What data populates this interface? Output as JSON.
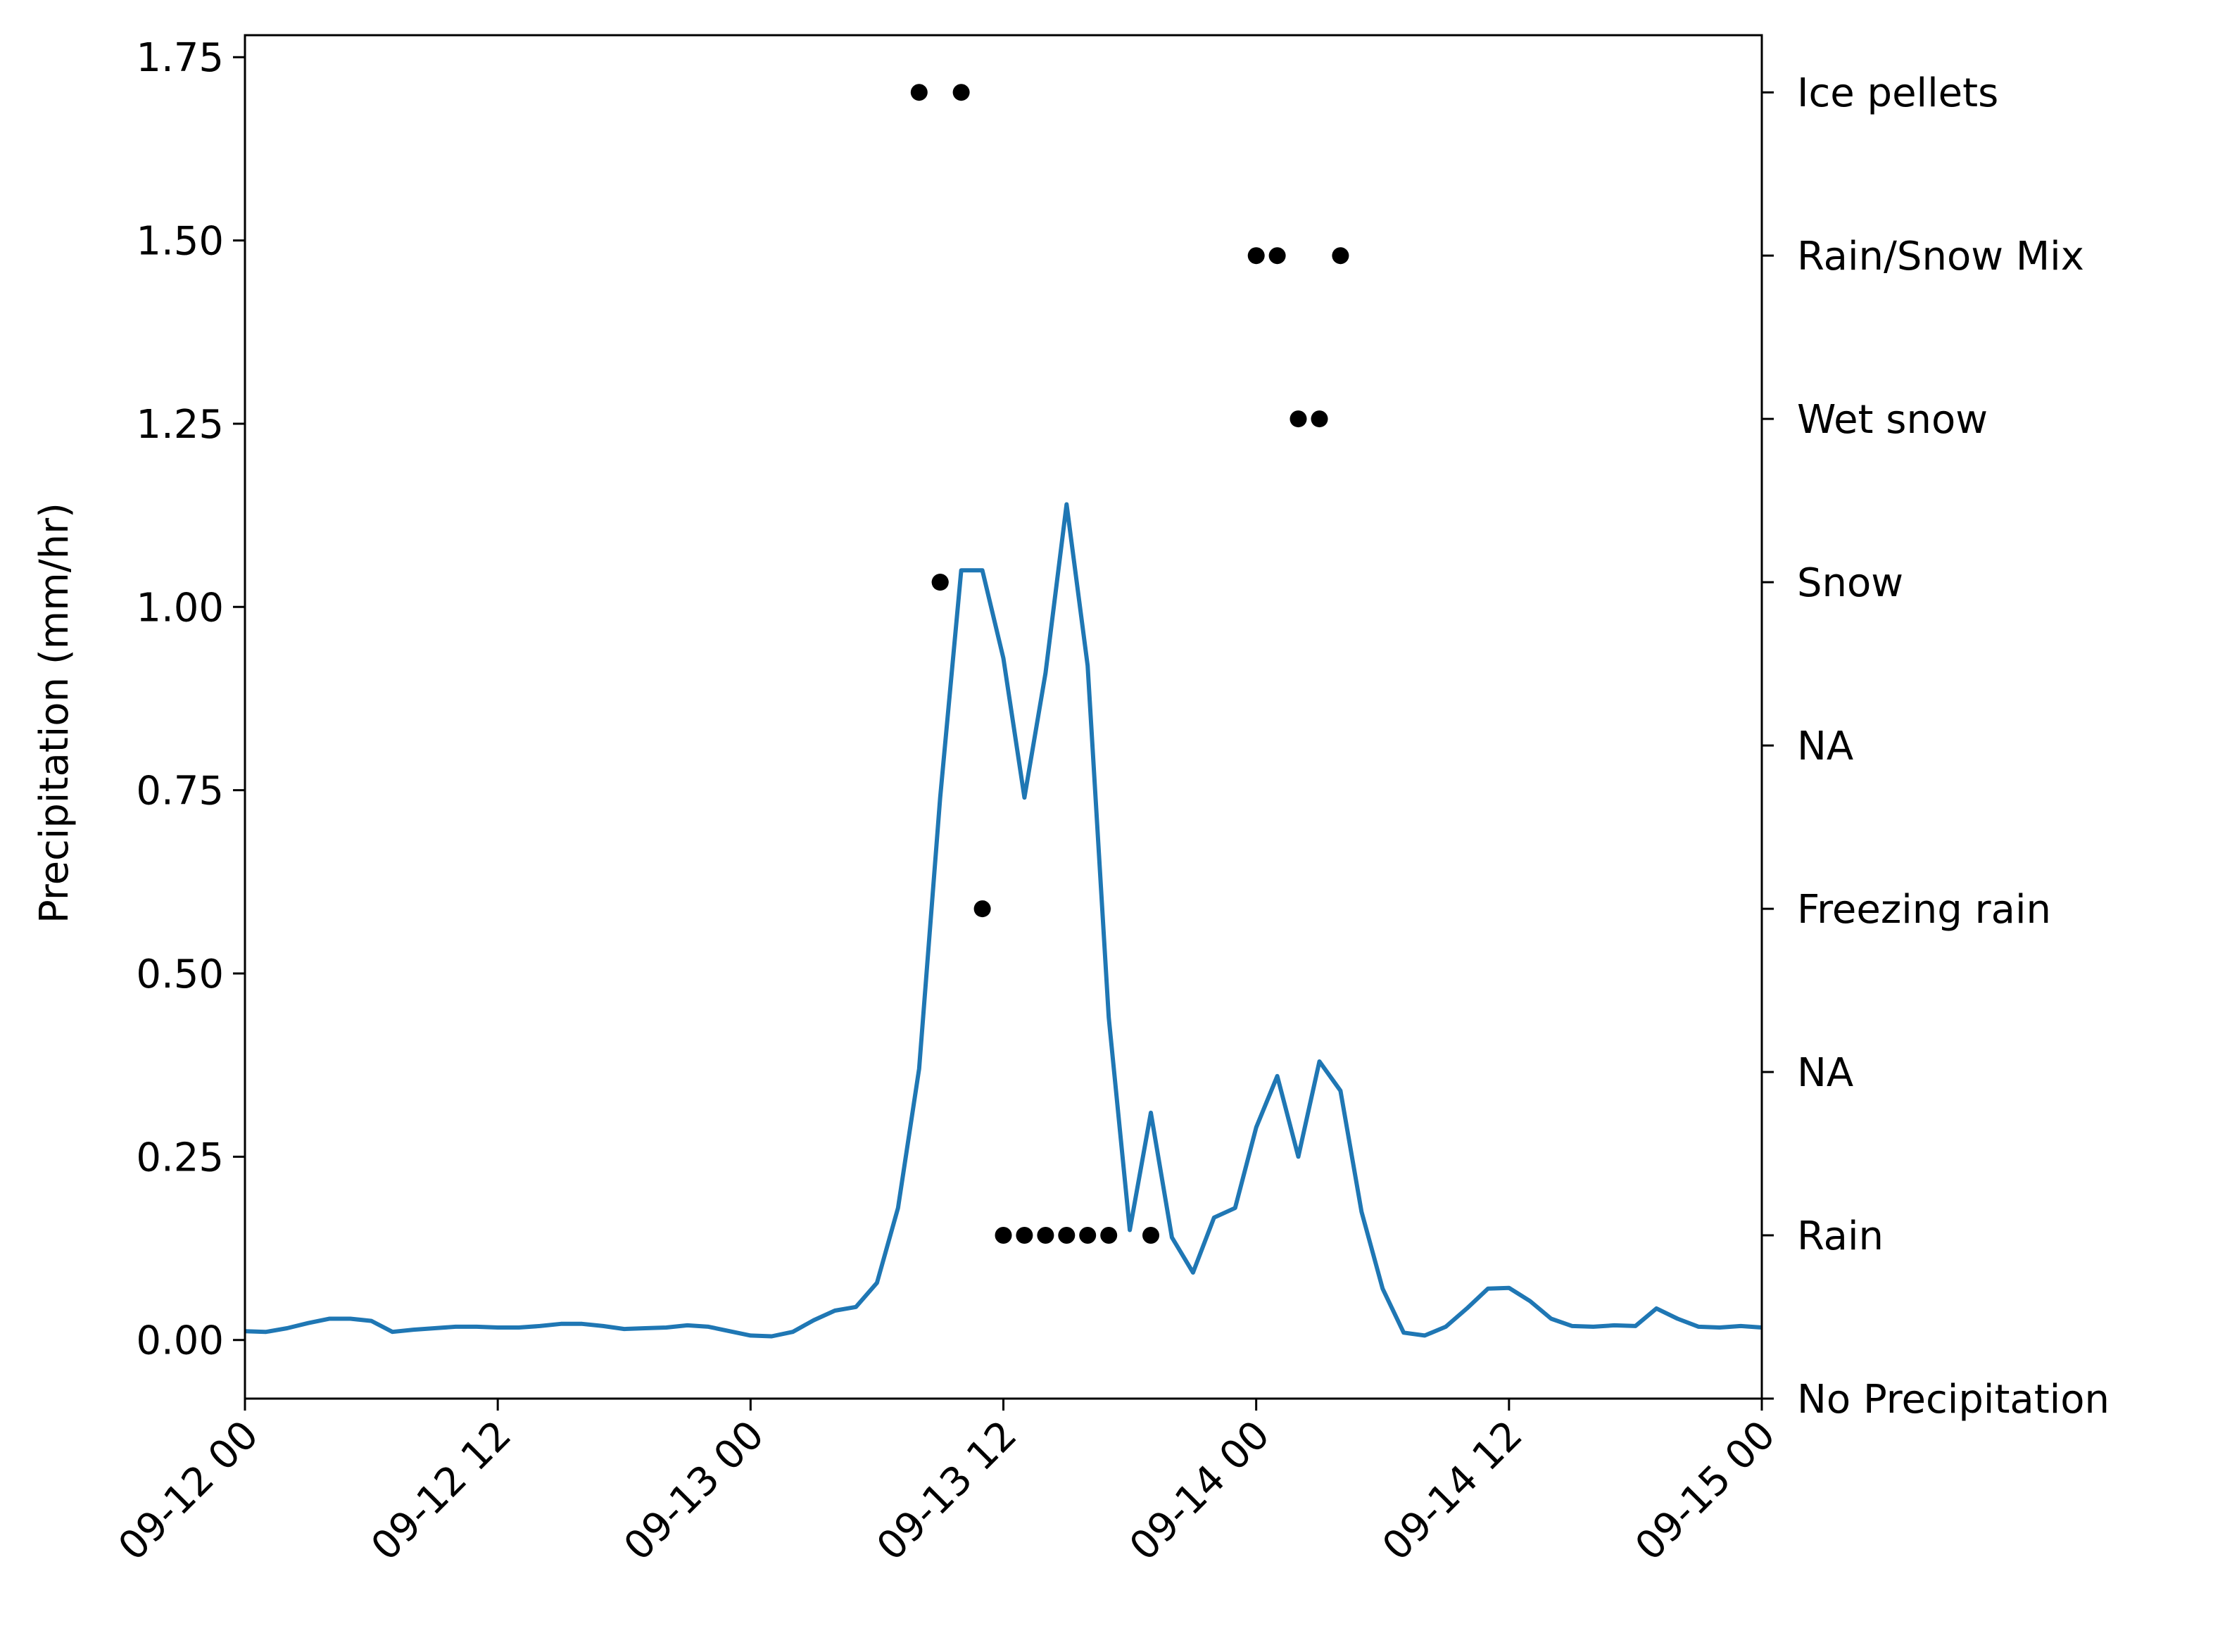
{
  "chart_data": {
    "type": "line",
    "title": "",
    "xlabel": "",
    "ylabel": "Precipitation (mm/hr)",
    "ylabel_right": "",
    "grid": false,
    "legend": "none",
    "xlim": [
      "2023-09-12 00:00",
      "2023-09-15 00:00"
    ],
    "ylim": [
      -0.08,
      1.78
    ],
    "x_tick_labels": [
      "09-12 00",
      "09-12 12",
      "09-13 00",
      "09-13 12",
      "09-14 00",
      "09-14 12",
      "09-15 00"
    ],
    "y_ticks": [
      0.0,
      0.25,
      0.5,
      0.75,
      1.0,
      1.25,
      1.5,
      1.75
    ],
    "y_tick_labels": [
      "0.00",
      "0.25",
      "0.50",
      "0.75",
      "1.00",
      "1.25",
      "1.50",
      "1.75"
    ],
    "right_axis": {
      "ylim": [
        0,
        8.35
      ],
      "ticks": [
        0,
        1,
        2,
        3,
        4,
        5,
        6,
        7,
        8
      ],
      "tick_labels": [
        "No Precipitation",
        "Rain",
        "NA",
        "Freezing rain",
        "NA",
        "Snow",
        "Wet snow",
        "Rain/Snow Mix",
        "Ice pellets"
      ]
    },
    "series": [
      {
        "type": "line",
        "color": "#1f77b4",
        "x_hours": [
          0,
          1,
          2,
          3,
          4,
          5,
          6,
          7,
          8,
          9,
          10,
          11,
          12,
          13,
          14,
          15,
          16,
          17,
          18,
          19,
          20,
          21,
          22,
          23,
          24,
          25,
          26,
          27,
          28,
          29,
          30,
          31,
          32,
          33,
          34,
          35,
          36,
          37,
          38,
          39,
          40,
          41,
          42,
          43,
          44,
          45,
          46,
          47,
          48,
          49,
          50,
          51,
          52,
          53,
          54,
          55,
          56,
          57,
          58,
          59,
          60,
          61,
          62,
          63,
          64,
          65,
          66,
          67,
          68,
          69,
          70,
          71,
          72
        ],
        "values": [
          0.012,
          0.011,
          0.016,
          0.023,
          0.029,
          0.029,
          0.026,
          0.011,
          0.014,
          0.016,
          0.018,
          0.018,
          0.017,
          0.017,
          0.019,
          0.022,
          0.022,
          0.019,
          0.015,
          0.016,
          0.017,
          0.02,
          0.018,
          0.012,
          0.006,
          0.005,
          0.011,
          0.027,
          0.04,
          0.045,
          0.078,
          0.18,
          0.37,
          0.74,
          1.05,
          1.05,
          0.93,
          0.74,
          0.91,
          1.14,
          0.92,
          0.44,
          0.15,
          0.31,
          0.14,
          0.092,
          0.167,
          0.18,
          0.29,
          0.36,
          0.25,
          0.38,
          0.34,
          0.175,
          0.07,
          0.01,
          0.006,
          0.018,
          0.043,
          0.07,
          0.071,
          0.053,
          0.029,
          0.019,
          0.018,
          0.02,
          0.019,
          0.043,
          0.029,
          0.018,
          0.017,
          0.019,
          0.017
        ]
      },
      {
        "type": "scatter",
        "axis": "right",
        "color": "#000000",
        "x_hours": [
          32,
          34,
          33,
          35,
          36,
          37,
          38,
          39,
          40,
          41,
          43,
          48,
          49,
          52,
          50,
          51,
          33
        ],
        "categories": [
          "Ice pellets",
          "Ice pellets",
          "Snow",
          "Freezing rain",
          "Rain",
          "Rain",
          "Rain",
          "Rain",
          "Rain",
          "Rain",
          "Rain",
          "Rain/Snow Mix",
          "Rain/Snow Mix",
          "Rain/Snow Mix",
          "Wet snow",
          "Wet snow",
          "Snow"
        ],
        "values": [
          8,
          8,
          5,
          3,
          1,
          1,
          1,
          1,
          1,
          1,
          1,
          7,
          7,
          7,
          6,
          6,
          5
        ]
      }
    ]
  }
}
